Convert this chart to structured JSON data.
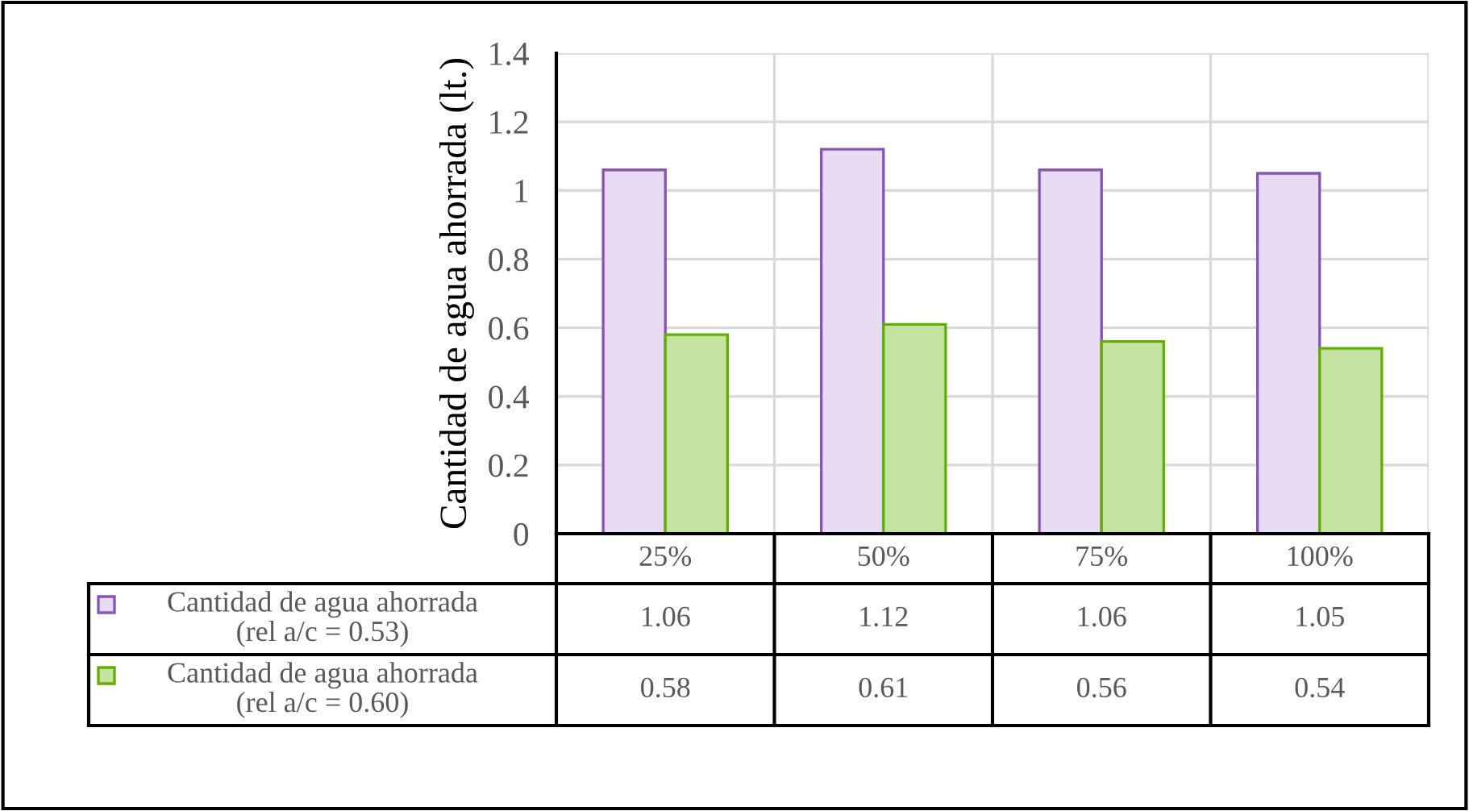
{
  "chart_data": {
    "type": "bar",
    "ylabel": "Cantidad de agua ahorrada (lt.)",
    "categories": [
      "25%",
      "50%",
      "75%",
      "100%"
    ],
    "series": [
      {
        "name": "Cantidad de agua ahorrada\n(rel a/c = 0.53)",
        "color": "#e8dcf4",
        "values": [
          1.06,
          1.12,
          1.06,
          1.05
        ]
      },
      {
        "name": "Cantidad de agua ahorrada\n(rel a/c = 0.60)",
        "color": "#c5e3a0",
        "values": [
          0.58,
          0.61,
          0.56,
          0.54
        ]
      }
    ],
    "ylim": [
      0,
      1.4
    ],
    "yticks": [
      0,
      0.2,
      0.4,
      0.6,
      0.8,
      1,
      1.2,
      1.4
    ],
    "grid": true,
    "legend": "bottom",
    "data_labels": true
  }
}
